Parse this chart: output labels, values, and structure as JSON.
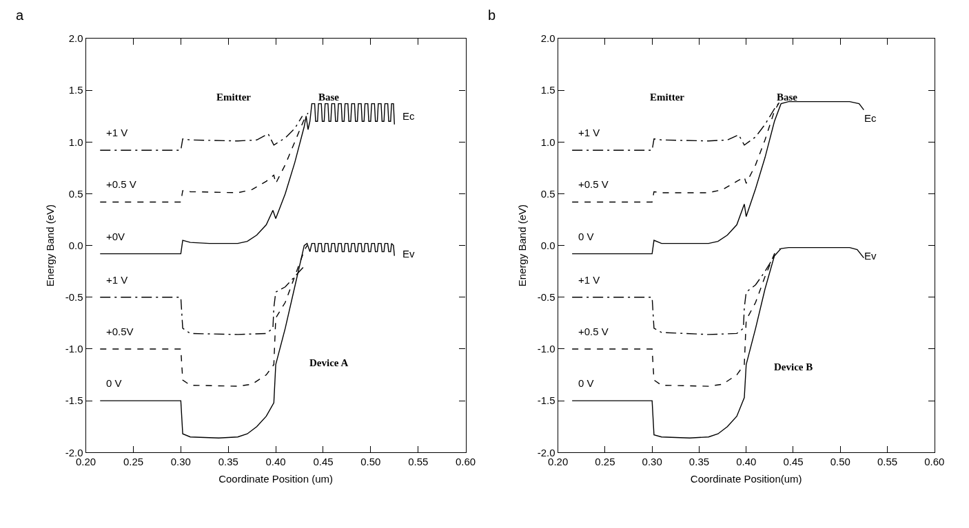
{
  "chart_data": [
    {
      "type": "line",
      "title": "a",
      "xlabel": "Coordinate Position (um)",
      "ylabel": "Energy Band (eV)",
      "xlim": [
        0.2,
        0.6
      ],
      "ylim": [
        -2,
        2
      ],
      "xticks": [
        {
          "value": 0.2,
          "label": "0.20"
        },
        {
          "value": 0.25,
          "label": "0.25"
        },
        {
          "value": 0.3,
          "label": "0.30"
        },
        {
          "value": 0.35,
          "label": "0.35"
        },
        {
          "value": 0.4,
          "label": "0.40"
        },
        {
          "value": 0.45,
          "label": "0.45"
        },
        {
          "value": 0.5,
          "label": "0.50"
        },
        {
          "value": 0.55,
          "label": "0.55"
        },
        {
          "value": 0.6,
          "label": "0.60"
        }
      ],
      "yticks": [
        {
          "value": -2,
          "label": "-2.0"
        },
        {
          "value": -1.5,
          "label": "-1.5"
        },
        {
          "value": -1,
          "label": "-1.0"
        },
        {
          "value": -0.5,
          "label": "-0.5"
        },
        {
          "value": 0,
          "label": "0.0"
        },
        {
          "value": 0.5,
          "label": "0.5"
        },
        {
          "value": 1,
          "label": "1.0"
        },
        {
          "value": 1.5,
          "label": "1.5"
        },
        {
          "value": 2,
          "label": "2.0"
        }
      ],
      "grid": false,
      "legend": false,
      "marker": "none",
      "series": [
        {
          "name": "+0V",
          "color": "#000000",
          "line_style": "solid",
          "x": [
            0.215,
            0.3,
            0.302,
            0.31,
            0.33,
            0.36,
            0.37,
            0.38,
            0.39,
            0.397,
            0.4,
            0.41,
            0.42,
            0.43,
            0.432,
            0.434,
            0.436,
            0.438,
            0.441,
            0.442,
            0.444,
            0.445,
            0.448,
            0.449,
            0.451,
            0.452,
            0.455,
            0.456,
            0.458,
            0.459,
            0.462,
            0.463,
            0.465,
            0.466,
            0.469,
            0.47,
            0.472,
            0.473,
            0.476,
            0.477,
            0.479,
            0.48,
            0.483,
            0.484,
            0.486,
            0.487,
            0.49,
            0.491,
            0.493,
            0.494,
            0.497,
            0.498,
            0.5,
            0.501,
            0.504,
            0.505,
            0.507,
            0.508,
            0.511,
            0.512,
            0.514,
            0.515,
            0.518,
            0.519,
            0.521,
            0.522,
            0.524,
            0.525
          ],
          "values": [
            -0.08,
            -0.08,
            0.05,
            0.03,
            0.02,
            0.02,
            0.04,
            0.1,
            0.2,
            0.34,
            0.26,
            0.5,
            0.8,
            1.15,
            1.25,
            1.12,
            1.2,
            1.37,
            1.37,
            1.2,
            1.2,
            1.37,
            1.37,
            1.2,
            1.2,
            1.37,
            1.37,
            1.2,
            1.2,
            1.37,
            1.37,
            1.2,
            1.2,
            1.37,
            1.37,
            1.2,
            1.2,
            1.37,
            1.37,
            1.2,
            1.2,
            1.37,
            1.37,
            1.2,
            1.2,
            1.37,
            1.37,
            1.2,
            1.2,
            1.37,
            1.37,
            1.2,
            1.2,
            1.37,
            1.37,
            1.2,
            1.2,
            1.37,
            1.37,
            1.2,
            1.2,
            1.37,
            1.37,
            1.2,
            1.2,
            1.37,
            1.37,
            1.17
          ]
        },
        {
          "name": "+0.5 V",
          "color": "#000000",
          "line_style": "dashed",
          "x": [
            0.215,
            0.3,
            0.302,
            0.31,
            0.36,
            0.375,
            0.39,
            0.398,
            0.4,
            0.41,
            0.42,
            0.43,
            0.434
          ],
          "values": [
            0.42,
            0.42,
            0.53,
            0.52,
            0.51,
            0.54,
            0.62,
            0.68,
            0.6,
            0.78,
            1.0,
            1.22,
            1.28
          ]
        },
        {
          "name": "+1 V",
          "color": "#000000",
          "line_style": "dashdot",
          "x": [
            0.215,
            0.3,
            0.302,
            0.31,
            0.36,
            0.38,
            0.392,
            0.398,
            0.41,
            0.42,
            0.428
          ],
          "values": [
            0.92,
            0.92,
            1.03,
            1.02,
            1.01,
            1.02,
            1.08,
            0.97,
            1.04,
            1.13,
            1.25
          ]
        },
        {
          "name": "0 V",
          "color": "#000000",
          "line_style": "solid",
          "x": [
            0.215,
            0.3,
            0.302,
            0.31,
            0.34,
            0.36,
            0.37,
            0.38,
            0.39,
            0.398,
            0.4,
            0.41,
            0.42,
            0.43,
            0.433,
            0.436,
            0.438,
            0.441,
            0.442,
            0.444,
            0.445,
            0.448,
            0.449,
            0.451,
            0.452,
            0.455,
            0.456,
            0.458,
            0.459,
            0.462,
            0.463,
            0.465,
            0.466,
            0.469,
            0.47,
            0.472,
            0.473,
            0.476,
            0.477,
            0.479,
            0.48,
            0.483,
            0.484,
            0.486,
            0.487,
            0.49,
            0.491,
            0.493,
            0.494,
            0.497,
            0.498,
            0.5,
            0.501,
            0.504,
            0.505,
            0.507,
            0.508,
            0.511,
            0.512,
            0.514,
            0.515,
            0.518,
            0.519,
            0.521,
            0.522,
            0.524,
            0.525
          ],
          "values": [
            -1.5,
            -1.5,
            -1.82,
            -1.85,
            -1.86,
            -1.85,
            -1.82,
            -1.75,
            -1.65,
            -1.52,
            -1.15,
            -0.8,
            -0.4,
            0.0,
            0.02,
            -0.06,
            0.02,
            0.02,
            -0.06,
            -0.06,
            0.02,
            0.02,
            -0.06,
            -0.06,
            0.02,
            0.02,
            -0.06,
            -0.06,
            0.02,
            0.02,
            -0.06,
            -0.06,
            0.02,
            0.02,
            -0.06,
            -0.06,
            0.02,
            0.02,
            -0.06,
            -0.06,
            0.02,
            0.02,
            -0.06,
            -0.06,
            0.02,
            0.02,
            -0.06,
            -0.06,
            0.02,
            0.02,
            -0.06,
            -0.06,
            0.02,
            0.02,
            -0.06,
            -0.06,
            0.02,
            0.02,
            -0.06,
            -0.06,
            0.02,
            0.02,
            -0.06,
            -0.06,
            0.02,
            0.0,
            -0.1
          ]
        },
        {
          "name": "+0.5V",
          "color": "#000000",
          "line_style": "dashed",
          "x": [
            0.215,
            0.3,
            0.302,
            0.31,
            0.36,
            0.375,
            0.39,
            0.398,
            0.4,
            0.41,
            0.42,
            0.43,
            0.433
          ],
          "values": [
            -1.0,
            -1.0,
            -1.3,
            -1.35,
            -1.36,
            -1.34,
            -1.25,
            -1.15,
            -0.7,
            -0.55,
            -0.3,
            -0.05,
            0.0
          ]
        },
        {
          "name": "+1 V",
          "color": "#000000",
          "line_style": "dashdot",
          "x": [
            0.215,
            0.3,
            0.302,
            0.31,
            0.36,
            0.39,
            0.397,
            0.398,
            0.4,
            0.41,
            0.42,
            0.43
          ],
          "values": [
            -0.5,
            -0.5,
            -0.8,
            -0.85,
            -0.86,
            -0.85,
            -0.8,
            -0.6,
            -0.45,
            -0.4,
            -0.3,
            -0.2
          ]
        }
      ],
      "annotations": [
        "Emitter",
        "Base",
        "Device A",
        "Ec",
        "Ev"
      ]
    },
    {
      "type": "line",
      "title": "b",
      "xlabel": "Coordinate Position(um)",
      "ylabel": "Energy Band (eV)",
      "xlim": [
        0.2,
        0.6
      ],
      "ylim": [
        -2,
        2
      ],
      "xticks": [
        {
          "value": 0.2,
          "label": "0.20"
        },
        {
          "value": 0.25,
          "label": "0.25"
        },
        {
          "value": 0.3,
          "label": "0.30"
        },
        {
          "value": 0.35,
          "label": "0.35"
        },
        {
          "value": 0.4,
          "label": "0.40"
        },
        {
          "value": 0.45,
          "label": "0.45"
        },
        {
          "value": 0.5,
          "label": "0.50"
        },
        {
          "value": 0.55,
          "label": "0.55"
        },
        {
          "value": 0.6,
          "label": "0.60"
        }
      ],
      "yticks": [
        {
          "value": -2,
          "label": "-2.0"
        },
        {
          "value": -1.5,
          "label": "-1.5"
        },
        {
          "value": -1,
          "label": "-1.0"
        },
        {
          "value": -0.5,
          "label": "-0.5"
        },
        {
          "value": 0,
          "label": "0.0"
        },
        {
          "value": 0.5,
          "label": "0.5"
        },
        {
          "value": 1,
          "label": "1.0"
        },
        {
          "value": 1.5,
          "label": "1.5"
        },
        {
          "value": 2,
          "label": "2.0"
        }
      ],
      "grid": false,
      "legend": false,
      "marker": "none",
      "series": [
        {
          "name": "0 V",
          "color": "#000000",
          "line_style": "solid",
          "x": [
            0.215,
            0.3,
            0.302,
            0.31,
            0.33,
            0.36,
            0.37,
            0.38,
            0.39,
            0.398,
            0.4,
            0.41,
            0.42,
            0.43,
            0.437,
            0.445,
            0.51,
            0.52,
            0.525
          ],
          "values": [
            -0.08,
            -0.08,
            0.05,
            0.02,
            0.02,
            0.02,
            0.04,
            0.1,
            0.2,
            0.4,
            0.28,
            0.55,
            0.85,
            1.2,
            1.37,
            1.39,
            1.39,
            1.37,
            1.31
          ]
        },
        {
          "name": "+0.5 V",
          "color": "#000000",
          "line_style": "dashed",
          "x": [
            0.215,
            0.3,
            0.302,
            0.31,
            0.36,
            0.375,
            0.39,
            0.398,
            0.4,
            0.41,
            0.42,
            0.43,
            0.435
          ],
          "values": [
            0.42,
            0.42,
            0.52,
            0.51,
            0.51,
            0.54,
            0.62,
            0.66,
            0.6,
            0.78,
            1.02,
            1.3,
            1.38
          ]
        },
        {
          "name": "+1 V",
          "color": "#000000",
          "line_style": "dashdot",
          "x": [
            0.215,
            0.3,
            0.302,
            0.31,
            0.36,
            0.38,
            0.392,
            0.398,
            0.41,
            0.42,
            0.43,
            0.434
          ],
          "values": [
            0.92,
            0.92,
            1.03,
            1.02,
            1.01,
            1.02,
            1.07,
            0.97,
            1.05,
            1.17,
            1.32,
            1.37
          ]
        },
        {
          "name": "0 V",
          "color": "#000000",
          "line_style": "solid",
          "x": [
            0.215,
            0.3,
            0.302,
            0.31,
            0.34,
            0.36,
            0.37,
            0.38,
            0.39,
            0.398,
            0.4,
            0.41,
            0.42,
            0.43,
            0.437,
            0.445,
            0.51,
            0.518,
            0.525
          ],
          "values": [
            -1.5,
            -1.5,
            -1.83,
            -1.85,
            -1.86,
            -1.85,
            -1.82,
            -1.75,
            -1.65,
            -1.47,
            -1.15,
            -0.8,
            -0.42,
            -0.1,
            -0.03,
            -0.02,
            -0.02,
            -0.04,
            -0.12
          ]
        },
        {
          "name": "+0.5 V",
          "color": "#000000",
          "line_style": "dashed",
          "x": [
            0.215,
            0.3,
            0.302,
            0.31,
            0.36,
            0.375,
            0.39,
            0.398,
            0.4,
            0.41,
            0.42,
            0.43,
            0.436
          ],
          "values": [
            -1.0,
            -1.0,
            -1.3,
            -1.35,
            -1.36,
            -1.34,
            -1.25,
            -1.15,
            -0.72,
            -0.55,
            -0.3,
            -0.08,
            -0.03
          ]
        },
        {
          "name": "+1 V",
          "color": "#000000",
          "line_style": "dashdot",
          "x": [
            0.215,
            0.3,
            0.302,
            0.31,
            0.36,
            0.39,
            0.397,
            0.398,
            0.4,
            0.41,
            0.42,
            0.43
          ],
          "values": [
            -0.5,
            -0.5,
            -0.8,
            -0.84,
            -0.86,
            -0.85,
            -0.8,
            -0.6,
            -0.45,
            -0.38,
            -0.25,
            -0.1
          ]
        }
      ],
      "annotations": [
        "Emitter",
        "Base",
        "Device B",
        "Ec",
        "Ev"
      ]
    }
  ]
}
